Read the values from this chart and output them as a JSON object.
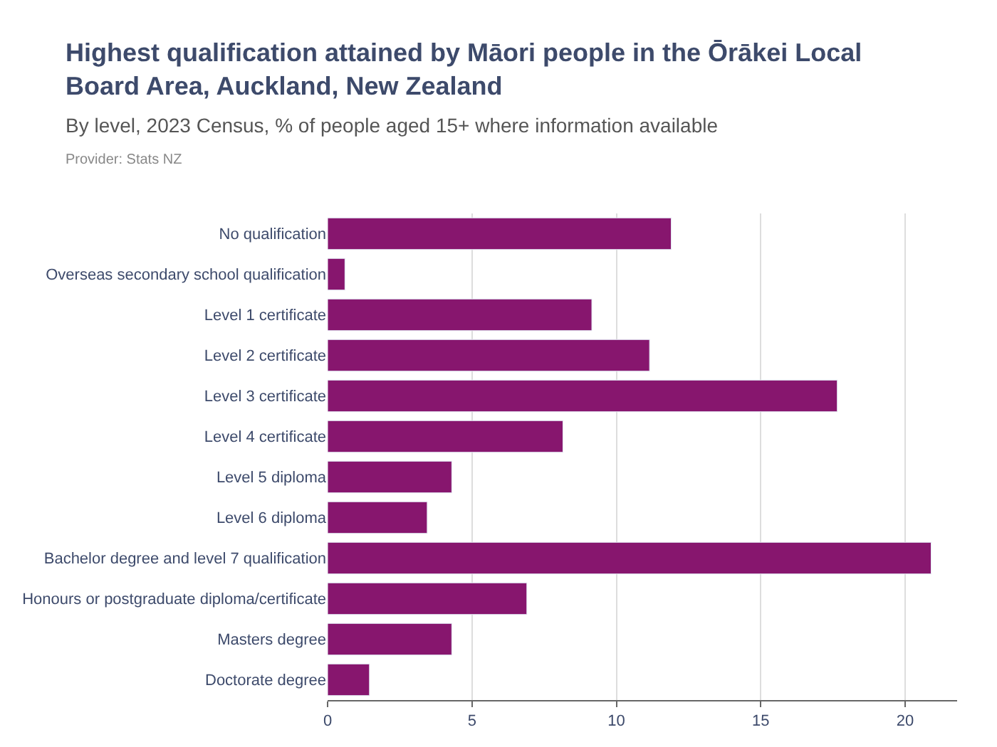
{
  "chart_data": {
    "type": "bar",
    "orientation": "horizontal",
    "title": "Highest qualification attained by Māori people in the Ōrākei Local Board Area, Auckland, New Zealand",
    "subtitle": "By level, 2023 Census, % of people aged 15+ where information available",
    "annotations": [
      "Provider: Stats NZ"
    ],
    "categories": [
      "No qualification",
      "Overseas secondary school qualification",
      "Level 1 certificate",
      "Level 2 certificate",
      "Level 3 certificate",
      "Level 4 certificate",
      "Level 5 diploma",
      "Level 6 diploma",
      "Bachelor degree and level 7 qualification",
      "Honours or postgraduate diploma/certificate",
      "Masters degree",
      "Doctorate degree"
    ],
    "values": [
      11.9,
      0.6,
      9.15,
      11.15,
      17.65,
      8.15,
      4.3,
      3.45,
      20.9,
      6.9,
      4.3,
      1.45
    ],
    "color": "#87166e",
    "xlim": [
      0,
      21.8
    ],
    "xticks": [
      0,
      5,
      10,
      15,
      20
    ],
    "grid": "x",
    "legend": false
  }
}
